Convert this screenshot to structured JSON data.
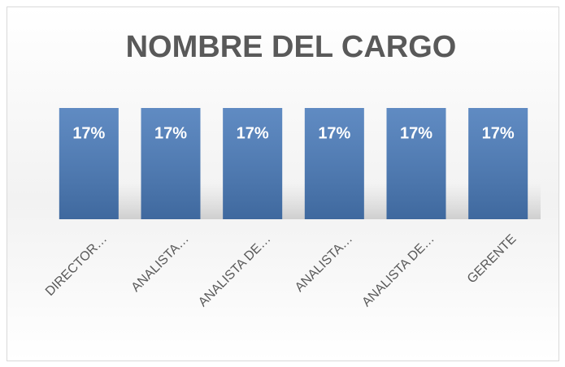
{
  "chart_data": {
    "type": "bar",
    "title": "NOMBRE DEL CARGO",
    "categories": [
      "DIRECTOR…",
      "ANALISTA…",
      "ANALISTA DE…",
      "ANALISTA…",
      "ANALISTA DE…",
      "GERENTE"
    ],
    "values": [
      17,
      17,
      17,
      17,
      17,
      17
    ],
    "value_labels": [
      "17%",
      "17%",
      "17%",
      "17%",
      "17%",
      "17%"
    ],
    "color": "#4a7bba"
  }
}
